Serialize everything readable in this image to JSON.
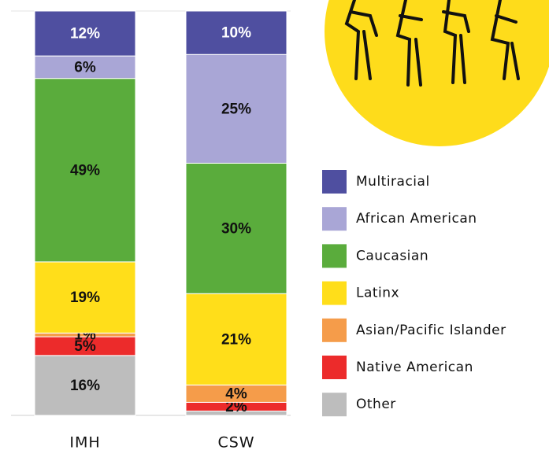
{
  "chart_data": {
    "type": "stacked_bar",
    "categories": [
      "IMH",
      "CSW"
    ],
    "series": [
      {
        "name": "Other",
        "color": "#bdbdbd",
        "values": [
          16,
          1
        ],
        "value_labels": [
          "16%",
          null
        ]
      },
      {
        "name": "Native American",
        "color": "#ec2b2b",
        "values": [
          5,
          2
        ],
        "value_labels": [
          "5%",
          "2%"
        ]
      },
      {
        "name": "Asian/Pacific Islander",
        "color": "#f59c4a",
        "values": [
          1,
          4
        ],
        "value_labels": [
          "1%",
          "4%"
        ]
      },
      {
        "name": "Latinx",
        "color": "#ffde1a",
        "values": [
          19,
          21
        ],
        "value_labels": [
          "19%",
          "21%"
        ]
      },
      {
        "name": "Caucasian",
        "color": "#5aac3c",
        "values": [
          49,
          30
        ],
        "value_labels": [
          "49%",
          "30%"
        ]
      },
      {
        "name": "African American",
        "color": "#a9a6d6",
        "values": [
          6,
          25
        ],
        "value_labels": [
          "6%",
          "25%"
        ]
      },
      {
        "name": "Multiracial",
        "color": "#4f4fa0",
        "values": [
          12,
          10
        ],
        "value_labels": [
          "12%",
          "10%"
        ]
      }
    ]
  }
}
